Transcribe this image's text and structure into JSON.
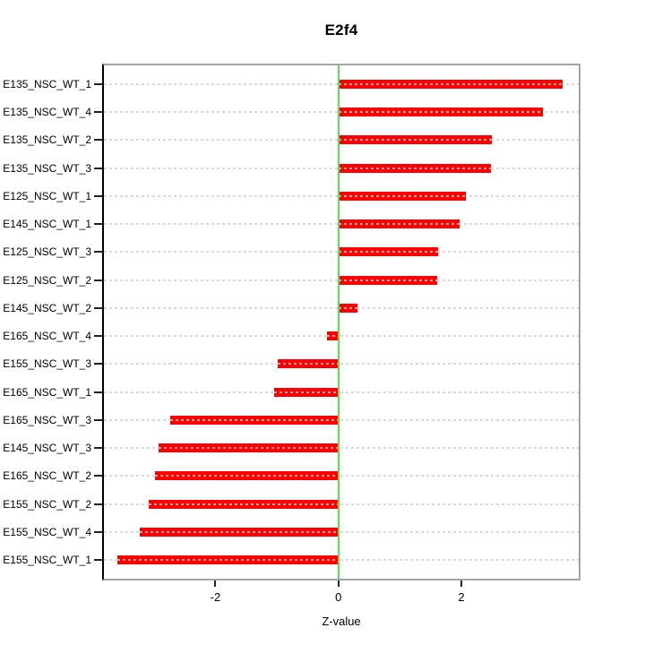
{
  "title": "E2f4",
  "xlabel": "Z-value",
  "chart_data": {
    "type": "bar",
    "orientation": "horizontal",
    "title": "E2f4",
    "xlabel": "Z-value",
    "ylabel": "",
    "categories": [
      "E135_NSC_WT_1",
      "E135_NSC_WT_4",
      "E135_NSC_WT_2",
      "E135_NSC_WT_3",
      "E125_NSC_WT_1",
      "E145_NSC_WT_1",
      "E125_NSC_WT_3",
      "E125_NSC_WT_2",
      "E145_NSC_WT_2",
      "E165_NSC_WT_4",
      "E155_NSC_WT_3",
      "E165_NSC_WT_1",
      "E165_NSC_WT_3",
      "E145_NSC_WT_3",
      "E165_NSC_WT_2",
      "E155_NSC_WT_2",
      "E155_NSC_WT_4",
      "E155_NSC_WT_1"
    ],
    "values": [
      3.65,
      3.32,
      2.5,
      2.48,
      2.07,
      1.97,
      1.62,
      1.6,
      0.31,
      -0.19,
      -0.99,
      -1.05,
      -2.73,
      -2.92,
      -2.98,
      -3.08,
      -3.23,
      -3.59
    ],
    "x_ticks": [
      "-2",
      "0",
      "2"
    ],
    "x_tick_values": [
      -2,
      0,
      2
    ],
    "xlim": [
      -3.8,
      3.9
    ],
    "zero_line_value": 0,
    "grid": true,
    "legend_position": "none",
    "colors": {
      "bar": "#ff0000",
      "zero_line": "#55e055",
      "grid": "#d8d8d8",
      "frame": "#a3a3a3",
      "axis": "#000000"
    }
  }
}
